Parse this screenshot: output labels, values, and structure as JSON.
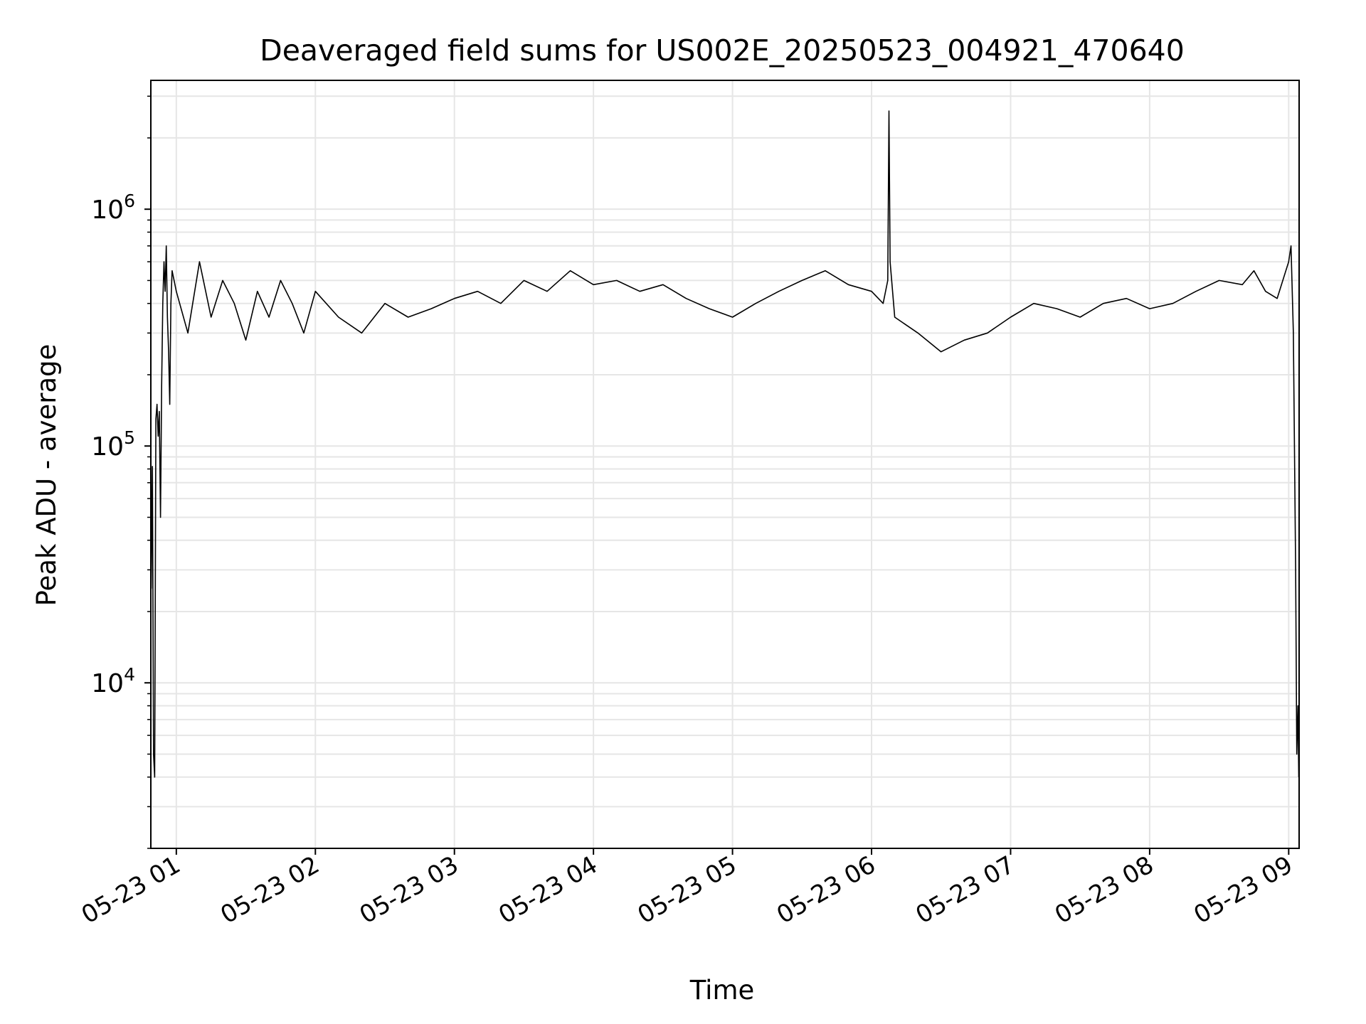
{
  "chart_data": {
    "type": "line",
    "title": "Deaveraged field sums for US002E_20250523_004921_470640",
    "xlabel": "Time",
    "ylabel": "Peak ADU - average",
    "yscale": "log",
    "ylim": [
      2000,
      3500000
    ],
    "xlim": [
      "2025-05-23T00:49:00",
      "2025-05-23T09:04:30"
    ],
    "grid": true,
    "line_color": "#000000",
    "grid_color": "#e6e6e6",
    "x_ticks": [
      {
        "value": "2025-05-23T01:00:00",
        "label": "05-23 01"
      },
      {
        "value": "2025-05-23T02:00:00",
        "label": "05-23 02"
      },
      {
        "value": "2025-05-23T03:00:00",
        "label": "05-23 03"
      },
      {
        "value": "2025-05-23T04:00:00",
        "label": "05-23 04"
      },
      {
        "value": "2025-05-23T05:00:00",
        "label": "05-23 05"
      },
      {
        "value": "2025-05-23T06:00:00",
        "label": "05-23 06"
      },
      {
        "value": "2025-05-23T07:00:00",
        "label": "05-23 07"
      },
      {
        "value": "2025-05-23T08:00:00",
        "label": "05-23 08"
      },
      {
        "value": "2025-05-23T09:00:00",
        "label": "05-23 09"
      }
    ],
    "y_ticks": [
      {
        "value": 10000,
        "base": "10",
        "exp": "4"
      },
      {
        "value": 100000,
        "base": "10",
        "exp": "5"
      },
      {
        "value": 1000000,
        "base": "10",
        "exp": "6"
      }
    ],
    "series": [
      {
        "x": [
          "2025-05-23T00:49:10",
          "2025-05-23T00:49:40",
          "2025-05-23T00:50:10",
          "2025-05-23T00:50:40",
          "2025-05-23T00:51:10",
          "2025-05-23T00:51:40",
          "2025-05-23T00:52:10",
          "2025-05-23T00:52:40",
          "2025-05-23T00:53:10",
          "2025-05-23T00:53:40",
          "2025-05-23T00:54:10",
          "2025-05-23T00:54:40",
          "2025-05-23T00:55:10",
          "2025-05-23T00:55:40",
          "2025-05-23T00:56:10",
          "2025-05-23T00:56:40",
          "2025-05-23T00:57:10",
          "2025-05-23T00:57:40",
          "2025-05-23T00:58:10",
          "2025-05-23T01:00:00",
          "2025-05-23T01:05:00",
          "2025-05-23T01:10:00",
          "2025-05-23T01:15:00",
          "2025-05-23T01:20:00",
          "2025-05-23T01:25:00",
          "2025-05-23T01:30:00",
          "2025-05-23T01:35:00",
          "2025-05-23T01:40:00",
          "2025-05-23T01:45:00",
          "2025-05-23T01:50:00",
          "2025-05-23T01:55:00",
          "2025-05-23T02:00:00",
          "2025-05-23T02:10:00",
          "2025-05-23T02:20:00",
          "2025-05-23T02:30:00",
          "2025-05-23T02:40:00",
          "2025-05-23T02:50:00",
          "2025-05-23T03:00:00",
          "2025-05-23T03:10:00",
          "2025-05-23T03:20:00",
          "2025-05-23T03:30:00",
          "2025-05-23T03:40:00",
          "2025-05-23T03:50:00",
          "2025-05-23T04:00:00",
          "2025-05-23T04:10:00",
          "2025-05-23T04:20:00",
          "2025-05-23T04:30:00",
          "2025-05-23T04:40:00",
          "2025-05-23T04:50:00",
          "2025-05-23T05:00:00",
          "2025-05-23T05:10:00",
          "2025-05-23T05:20:00",
          "2025-05-23T05:30:00",
          "2025-05-23T05:40:00",
          "2025-05-23T05:50:00",
          "2025-05-23T06:00:00",
          "2025-05-23T06:05:00",
          "2025-05-23T06:07:00",
          "2025-05-23T06:07:30",
          "2025-05-23T06:08:00",
          "2025-05-23T06:10:00",
          "2025-05-23T06:20:00",
          "2025-05-23T06:30:00",
          "2025-05-23T06:40:00",
          "2025-05-23T06:50:00",
          "2025-05-23T07:00:00",
          "2025-05-23T07:10:00",
          "2025-05-23T07:20:00",
          "2025-05-23T07:30:00",
          "2025-05-23T07:40:00",
          "2025-05-23T07:50:00",
          "2025-05-23T08:00:00",
          "2025-05-23T08:10:00",
          "2025-05-23T08:20:00",
          "2025-05-23T08:30:00",
          "2025-05-23T08:40:00",
          "2025-05-23T08:45:00",
          "2025-05-23T08:50:00",
          "2025-05-23T08:55:00",
          "2025-05-23T09:00:00",
          "2025-05-23T09:01:00",
          "2025-05-23T09:02:00",
          "2025-05-23T09:03:00",
          "2025-05-23T09:03:30",
          "2025-05-23T09:04:00",
          "2025-05-23T09:04:20"
        ],
        "y": [
          25000,
          82000,
          5000,
          4000,
          130000,
          150000,
          110000,
          140000,
          50000,
          180000,
          400000,
          600000,
          450000,
          700000,
          350000,
          250000,
          150000,
          400000,
          550000,
          450000,
          300000,
          600000,
          350000,
          500000,
          400000,
          280000,
          450000,
          350000,
          500000,
          400000,
          300000,
          450000,
          350000,
          300000,
          400000,
          350000,
          380000,
          420000,
          450000,
          400000,
          500000,
          450000,
          550000,
          480000,
          500000,
          450000,
          480000,
          420000,
          380000,
          350000,
          400000,
          450000,
          500000,
          550000,
          480000,
          450000,
          400000,
          500000,
          2600000,
          600000,
          350000,
          300000,
          250000,
          280000,
          300000,
          350000,
          400000,
          380000,
          350000,
          400000,
          420000,
          380000,
          400000,
          450000,
          500000,
          480000,
          550000,
          450000,
          420000,
          600000,
          700000,
          300000,
          30000,
          5000,
          8000,
          4000
        ]
      }
    ]
  }
}
